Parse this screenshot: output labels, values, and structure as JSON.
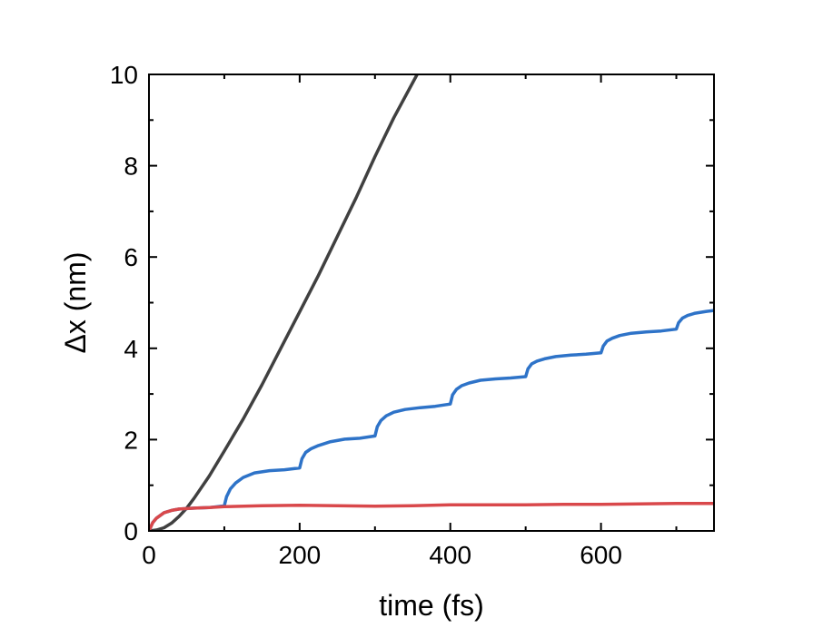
{
  "chart_data": {
    "type": "line",
    "title": "",
    "xlabel": "time (fs)",
    "ylabel": "Δx (nm)",
    "xlim": [
      0,
      750
    ],
    "ylim": [
      0,
      10
    ],
    "x_ticks": [
      0,
      200,
      400,
      600
    ],
    "y_ticks": [
      0,
      2,
      4,
      6,
      8,
      10
    ],
    "x_tick_labels": [
      "0",
      "200",
      "400",
      "600"
    ],
    "y_tick_labels": [
      "0",
      "2",
      "4",
      "6",
      "8",
      "10"
    ],
    "grid": false,
    "legend": "none",
    "series": [
      {
        "color": "#404040",
        "x": [
          0,
          10,
          20,
          30,
          40,
          50,
          60,
          80,
          100,
          125,
          150,
          175,
          200,
          225,
          250,
          275,
          300,
          325,
          356
        ],
        "y": [
          0,
          0.02,
          0.07,
          0.17,
          0.32,
          0.5,
          0.72,
          1.2,
          1.75,
          2.45,
          3.2,
          4.0,
          4.8,
          5.6,
          6.45,
          7.3,
          8.2,
          9.05,
          10.0
        ]
      },
      {
        "color": "#2e73c8",
        "x": [
          0,
          5,
          10,
          20,
          30,
          40,
          60,
          80,
          100,
          103,
          108,
          115,
          125,
          140,
          160,
          180,
          200,
          203,
          208,
          215,
          225,
          240,
          260,
          280,
          300,
          303,
          308,
          315,
          325,
          340,
          360,
          380,
          400,
          403,
          408,
          415,
          425,
          440,
          460,
          480,
          500,
          503,
          508,
          515,
          525,
          540,
          560,
          580,
          600,
          603,
          608,
          615,
          625,
          640,
          660,
          680,
          700,
          703,
          708,
          715,
          725,
          740,
          750
        ],
        "y": [
          0,
          0.18,
          0.28,
          0.4,
          0.45,
          0.48,
          0.5,
          0.51,
          0.55,
          0.75,
          0.92,
          1.05,
          1.17,
          1.27,
          1.32,
          1.34,
          1.38,
          1.58,
          1.72,
          1.8,
          1.87,
          1.95,
          2.01,
          2.03,
          2.08,
          2.28,
          2.42,
          2.52,
          2.6,
          2.66,
          2.7,
          2.73,
          2.78,
          2.98,
          3.1,
          3.18,
          3.24,
          3.3,
          3.33,
          3.35,
          3.38,
          3.55,
          3.66,
          3.72,
          3.77,
          3.82,
          3.85,
          3.87,
          3.9,
          4.05,
          4.16,
          4.22,
          4.28,
          4.33,
          4.36,
          4.38,
          4.42,
          4.56,
          4.66,
          4.72,
          4.77,
          4.81,
          4.83
        ]
      },
      {
        "color": "#d9484b",
        "x": [
          0,
          5,
          10,
          20,
          30,
          40,
          60,
          80,
          100,
          150,
          200,
          250,
          300,
          350,
          400,
          450,
          500,
          550,
          600,
          650,
          700,
          750
        ],
        "y": [
          0,
          0.18,
          0.28,
          0.4,
          0.45,
          0.48,
          0.5,
          0.51,
          0.53,
          0.55,
          0.56,
          0.55,
          0.54,
          0.55,
          0.57,
          0.57,
          0.57,
          0.58,
          0.58,
          0.59,
          0.6,
          0.6
        ]
      }
    ]
  }
}
